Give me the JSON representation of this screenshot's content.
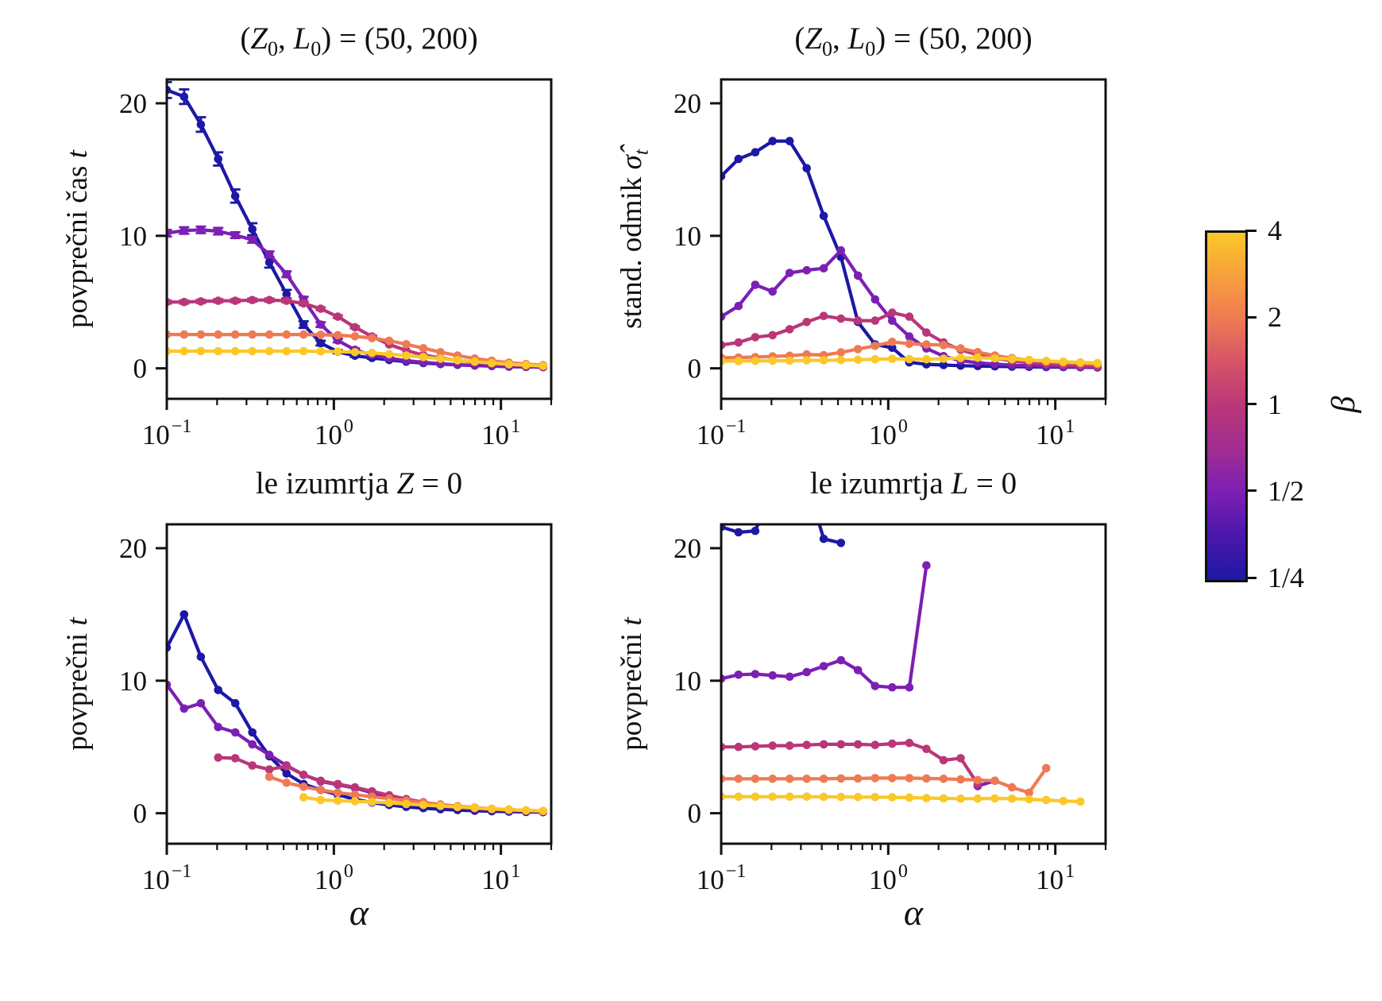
{
  "figure": {
    "background": "#ffffff",
    "axis_color": "#111111"
  },
  "labels": {
    "title_top_html": "(<i>Z</i><sub>0</sub>, <i>L</i><sub>0</sub>) = (50, 200)",
    "title_bl_html": "le izumrtja <i>Z</i> = 0",
    "title_br_html": "le izumrtja <i>L</i> = 0",
    "ylabel_tl_html": "povprečni čas <i>t</i>",
    "ylabel_tr_html": "stand. odmik <i>σ̂</i><sub><i>t</i></sub>",
    "ylabel_bottom_html": "povprečni <i>t</i>",
    "xlabel_html": "<i>α</i>"
  },
  "axes_shared": {
    "xlim": [
      0.1,
      20
    ],
    "ylim": [
      -2.3,
      21.8
    ],
    "xscale": "log",
    "grid": false,
    "xticks": [
      {
        "v": 0.1,
        "base": "10",
        "exp": "−1"
      },
      {
        "v": 1,
        "base": "10",
        "exp": "0"
      },
      {
        "v": 10,
        "base": "10",
        "exp": "1"
      }
    ],
    "yticks": [
      {
        "v": 0,
        "label": "0"
      },
      {
        "v": 10,
        "label": "10"
      },
      {
        "v": 20,
        "label": "20"
      }
    ]
  },
  "colorbar": {
    "label_html": "<i>β</i>",
    "tick_labels": [
      "4",
      "2",
      "1",
      "1/2",
      "1/4"
    ],
    "gradient_bottom_to_top": [
      "#1d18a5",
      "#4a17ab",
      "#7c1fb4",
      "#a02d92",
      "#b93778",
      "#d55367",
      "#ee7a54",
      "#f7a03c",
      "#fac828"
    ]
  },
  "chart_data": [
    {
      "id": "tl",
      "type": "line",
      "title": "(Z0, L0) = (50, 200)",
      "ylabel": "povprecni cas t",
      "x": [
        0.1,
        0.127,
        0.16,
        0.203,
        0.257,
        0.325,
        0.411,
        0.521,
        0.659,
        0.834,
        1.056,
        1.337,
        1.693,
        2.143,
        2.713,
        3.434,
        4.348,
        5.504,
        6.968,
        8.821,
        11.167,
        14.136,
        17.896
      ],
      "series": [
        {
          "name": "β = 1/4",
          "color": "#1d18a5",
          "values": [
            21.0,
            20.5,
            18.4,
            15.8,
            13.0,
            10.5,
            8.0,
            5.6,
            3.3,
            1.9,
            1.25,
            0.95,
            0.78,
            0.63,
            0.5,
            0.4,
            0.32,
            0.26,
            0.21,
            0.17,
            0.13,
            0.11,
            0.09
          ],
          "err": [
            0.6,
            0.55,
            0.55,
            0.5,
            0.5,
            0.45,
            0.4,
            0.32,
            0.25,
            0.18,
            0.12,
            0.09,
            0.07,
            0.05,
            0.05,
            0.04,
            0.04,
            0.03,
            0.03,
            0.03,
            0.02,
            0.02,
            0.02
          ]
        },
        {
          "name": "β = 1/2",
          "color": "#7c1fb4",
          "values": [
            10.2,
            10.4,
            10.45,
            10.35,
            10.05,
            9.7,
            8.6,
            7.1,
            5.2,
            3.3,
            2.1,
            1.4,
            1.0,
            0.75,
            0.58,
            0.45,
            0.35,
            0.28,
            0.22,
            0.18,
            0.14,
            0.11,
            0.09
          ],
          "err": [
            0.25,
            0.25,
            0.25,
            0.25,
            0.22,
            0.22,
            0.22,
            0.22,
            0.2,
            0.18,
            0.14,
            0.1,
            0.08,
            0.06,
            0.05,
            0.04,
            0.03,
            0.03,
            0.02,
            0.02,
            0.02,
            0.02,
            0.02
          ]
        },
        {
          "name": "β = 1",
          "color": "#b93778",
          "values": [
            5.0,
            5.0,
            5.05,
            5.1,
            5.1,
            5.15,
            5.15,
            5.1,
            4.9,
            4.5,
            3.9,
            3.1,
            2.4,
            1.8,
            1.35,
            1.0,
            0.78,
            0.6,
            0.47,
            0.36,
            0.28,
            0.21,
            0.16
          ],
          "err": [
            0.12,
            0.12,
            0.12,
            0.12,
            0.12,
            0.12,
            0.12,
            0.12,
            0.12,
            0.1,
            0.1,
            0.08,
            0.07,
            0.05,
            0.04,
            0.04,
            0.03,
            0.03,
            0.02,
            0.02,
            0.02,
            0.02,
            0.02
          ]
        },
        {
          "name": "β = 2",
          "color": "#ee7a54",
          "values": [
            2.55,
            2.55,
            2.55,
            2.55,
            2.55,
            2.55,
            2.55,
            2.55,
            2.55,
            2.53,
            2.5,
            2.42,
            2.28,
            2.08,
            1.82,
            1.52,
            1.22,
            0.96,
            0.74,
            0.57,
            0.43,
            0.32,
            0.24
          ]
        },
        {
          "name": "β = 4",
          "color": "#fac828",
          "values": [
            1.3,
            1.3,
            1.3,
            1.3,
            1.3,
            1.3,
            1.3,
            1.3,
            1.3,
            1.28,
            1.26,
            1.22,
            1.16,
            1.07,
            0.97,
            0.85,
            0.73,
            0.61,
            0.5,
            0.4,
            0.31,
            0.24,
            0.18
          ]
        }
      ]
    },
    {
      "id": "tr",
      "type": "line",
      "title": "(Z0, L0) = (50, 200)",
      "ylabel": "stand. odmik sigma_t",
      "x": [
        0.1,
        0.127,
        0.16,
        0.203,
        0.257,
        0.325,
        0.411,
        0.521,
        0.659,
        0.834,
        1.056,
        1.337,
        1.693,
        2.143,
        2.713,
        3.434,
        4.348,
        5.504,
        6.968,
        8.821,
        11.167,
        14.136,
        17.896
      ],
      "series": [
        {
          "name": "β = 1/4",
          "color": "#1d18a5",
          "values": [
            14.5,
            15.8,
            16.3,
            17.15,
            17.15,
            15.1,
            11.5,
            8.4,
            3.5,
            1.8,
            1.55,
            0.45,
            0.3,
            0.25,
            0.2,
            0.17,
            0.15,
            0.13,
            0.11,
            0.1,
            0.09,
            0.08,
            0.07
          ]
        },
        {
          "name": "β = 1/2",
          "color": "#7c1fb4",
          "values": [
            3.9,
            4.7,
            6.3,
            5.8,
            7.2,
            7.4,
            7.55,
            8.9,
            7.0,
            5.2,
            3.6,
            2.4,
            1.5,
            0.92,
            0.58,
            0.42,
            0.32,
            0.25,
            0.2,
            0.16,
            0.13,
            0.11,
            0.09
          ]
        },
        {
          "name": "β = 1",
          "color": "#b93778",
          "values": [
            1.75,
            1.95,
            2.35,
            2.5,
            2.95,
            3.5,
            3.95,
            3.75,
            3.6,
            3.6,
            4.2,
            3.9,
            2.7,
            1.95,
            1.4,
            1.02,
            0.76,
            0.57,
            0.44,
            0.34,
            0.26,
            0.2,
            0.16
          ]
        },
        {
          "name": "β = 2",
          "color": "#ee7a54",
          "values": [
            0.8,
            0.82,
            0.85,
            0.9,
            0.95,
            1.05,
            1.0,
            1.2,
            1.45,
            1.7,
            2.0,
            1.85,
            1.8,
            1.75,
            1.5,
            1.22,
            0.97,
            0.77,
            0.62,
            0.52,
            0.44,
            0.38,
            0.33
          ]
        },
        {
          "name": "β = 4",
          "color": "#fac828",
          "values": [
            0.55,
            0.55,
            0.56,
            0.57,
            0.58,
            0.6,
            0.6,
            0.62,
            0.65,
            0.68,
            0.72,
            0.7,
            0.68,
            0.73,
            0.78,
            0.8,
            0.76,
            0.7,
            0.63,
            0.56,
            0.5,
            0.45,
            0.4
          ]
        }
      ]
    },
    {
      "id": "bl",
      "type": "line",
      "title": "le izumrtja Z = 0",
      "ylabel": "povprecni t",
      "x": [
        0.1,
        0.127,
        0.16,
        0.203,
        0.257,
        0.325,
        0.411,
        0.521,
        0.659,
        0.834,
        1.056,
        1.337,
        1.693,
        2.143,
        2.713,
        3.434,
        4.348,
        5.504,
        6.968,
        8.821,
        11.167,
        14.136,
        17.896
      ],
      "series": [
        {
          "name": "β = 1/4",
          "color": "#1d18a5",
          "values": [
            12.5,
            15.0,
            11.8,
            9.3,
            8.3,
            6.1,
            4.3,
            3.0,
            2.2,
            1.75,
            1.4,
            1.05,
            0.8,
            0.62,
            0.48,
            0.38,
            0.3,
            0.24,
            0.19,
            0.15,
            0.12,
            0.1,
            0.08
          ]
        },
        {
          "name": "β = 1/2",
          "color": "#7c1fb4",
          "values": [
            9.7,
            7.9,
            8.3,
            6.5,
            6.1,
            5.2,
            4.4,
            3.6,
            2.9,
            2.4,
            2.15,
            1.9,
            1.55,
            1.2,
            0.92,
            0.72,
            0.56,
            0.44,
            0.34,
            0.27,
            0.21,
            0.17,
            0.13
          ]
        },
        {
          "name": "β = 1",
          "color": "#b93778",
          "values": [
            null,
            null,
            null,
            4.2,
            4.15,
            3.6,
            3.3,
            3.55,
            2.9,
            2.45,
            2.2,
            1.95,
            1.65,
            1.35,
            1.07,
            0.83,
            0.64,
            0.5,
            0.39,
            0.3,
            0.23,
            0.18,
            0.14
          ]
        },
        {
          "name": "β = 2",
          "color": "#ee7a54",
          "values": [
            null,
            null,
            null,
            null,
            null,
            null,
            2.75,
            2.3,
            2.0,
            1.75,
            1.55,
            1.4,
            1.25,
            1.1,
            0.95,
            0.8,
            0.66,
            0.53,
            0.43,
            0.34,
            0.27,
            0.21,
            0.17
          ]
        },
        {
          "name": "β = 4",
          "color": "#fac828",
          "values": [
            null,
            null,
            null,
            null,
            null,
            null,
            null,
            null,
            1.2,
            1.0,
            0.95,
            0.9,
            0.85,
            0.78,
            0.7,
            0.62,
            0.55,
            0.47,
            0.4,
            0.33,
            0.27,
            0.21,
            0.17
          ]
        }
      ]
    },
    {
      "id": "br",
      "type": "line",
      "title": "le izumrtja L = 0",
      "ylabel": "povprecni t",
      "x": [
        0.1,
        0.127,
        0.16,
        0.203,
        0.257,
        0.325,
        0.411,
        0.521,
        0.659,
        0.834,
        1.056,
        1.337,
        1.693,
        2.143,
        2.713,
        3.434,
        4.348,
        5.504,
        6.968,
        8.821,
        11.167,
        14.136,
        17.896
      ],
      "series": [
        {
          "name": "β = 1/4",
          "color": "#1d18a5",
          "values": [
            21.6,
            21.2,
            21.3,
            24.5,
            25.5,
            25.0,
            20.7,
            20.4,
            null,
            null,
            null,
            null,
            null,
            null,
            null,
            null,
            null,
            null,
            null,
            null,
            null,
            null,
            null
          ]
        },
        {
          "name": "β = 1/2",
          "color": "#7c1fb4",
          "values": [
            10.15,
            10.45,
            10.5,
            10.4,
            10.3,
            10.65,
            11.1,
            11.55,
            10.8,
            9.6,
            9.5,
            9.5,
            18.7,
            null,
            null,
            2.05,
            2.45,
            null,
            null,
            null,
            null,
            null,
            null
          ]
        },
        {
          "name": "β = 1",
          "color": "#b93778",
          "values": [
            5.0,
            5.0,
            5.05,
            5.1,
            5.1,
            5.15,
            5.2,
            5.2,
            5.2,
            5.15,
            5.25,
            5.3,
            4.85,
            4.0,
            4.15,
            2.2,
            null,
            null,
            null,
            null,
            null,
            null,
            null
          ]
        },
        {
          "name": "β = 2",
          "color": "#ee7a54",
          "values": [
            2.6,
            2.6,
            2.6,
            2.6,
            2.6,
            2.6,
            2.6,
            2.62,
            2.62,
            2.65,
            2.65,
            2.65,
            2.62,
            2.6,
            2.55,
            2.5,
            2.45,
            1.95,
            1.55,
            3.4,
            null,
            null,
            null
          ]
        },
        {
          "name": "β = 4",
          "color": "#fac828",
          "values": [
            1.25,
            1.25,
            1.25,
            1.25,
            1.25,
            1.25,
            1.24,
            1.23,
            1.22,
            1.22,
            1.2,
            1.18,
            1.15,
            1.12,
            1.1,
            1.1,
            1.12,
            1.1,
            1.05,
            1.0,
            0.92,
            0.88,
            null
          ]
        }
      ]
    }
  ]
}
